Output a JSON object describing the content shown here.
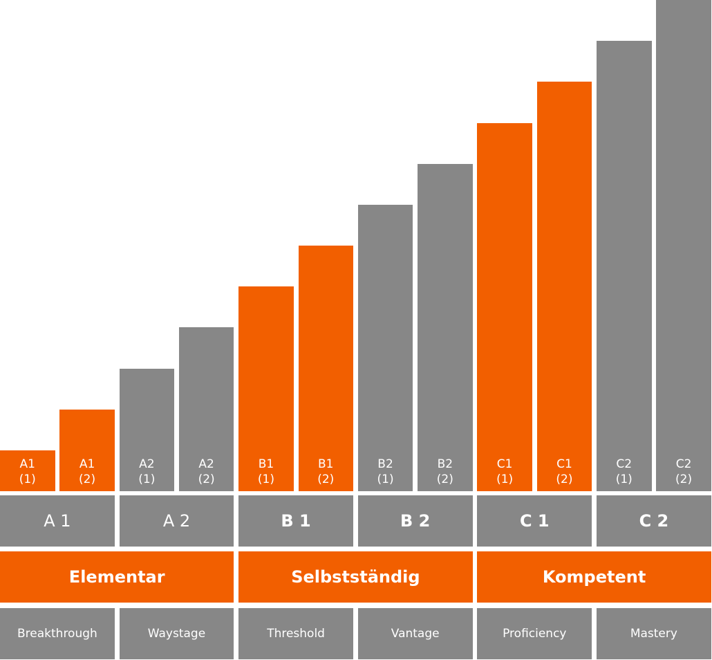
{
  "colors": {
    "orange": "#f25f00",
    "gray": "#878787"
  },
  "chart_data": {
    "type": "bar",
    "title": "",
    "xlabel": "",
    "ylabel": "",
    "ylim": [
      0,
      12
    ],
    "grid": false,
    "legend": "none",
    "categories": [
      "A1\n(1)",
      "A1\n(2)",
      "A2\n(1)",
      "A2\n(2)",
      "B1\n(1)",
      "B1\n(2)",
      "B2\n(1)",
      "B2\n(2)",
      "C1\n(1)",
      "C1\n(2)",
      "C2\n(1)",
      "C2\n(2)"
    ],
    "values": [
      1,
      2,
      3,
      4,
      5,
      6,
      7,
      8,
      9,
      10,
      11,
      12
    ],
    "bar_colors": [
      "orange",
      "orange",
      "gray",
      "gray",
      "orange",
      "orange",
      "gray",
      "gray",
      "orange",
      "orange",
      "gray",
      "gray"
    ]
  },
  "levels": [
    {
      "label": "A 1",
      "color": "gray",
      "bold": false
    },
    {
      "label": "A 2",
      "color": "gray",
      "bold": false
    },
    {
      "label": "B 1",
      "color": "gray",
      "bold": true
    },
    {
      "label": "B 2",
      "color": "gray",
      "bold": true
    },
    {
      "label": "C 1",
      "color": "gray",
      "bold": true
    },
    {
      "label": "C 2",
      "color": "gray",
      "bold": true
    }
  ],
  "groups": [
    {
      "label": "Elementar",
      "color": "orange"
    },
    {
      "label": "Selbstständig",
      "color": "orange"
    },
    {
      "label": "Kompetent",
      "color": "orange"
    }
  ],
  "names": [
    {
      "label": "Breakthrough",
      "color": "gray"
    },
    {
      "label": "Waystage",
      "color": "gray"
    },
    {
      "label": "Threshold",
      "color": "gray"
    },
    {
      "label": "Vantage",
      "color": "gray"
    },
    {
      "label": "Proficiency",
      "color": "gray"
    },
    {
      "label": "Mastery",
      "color": "gray"
    }
  ]
}
